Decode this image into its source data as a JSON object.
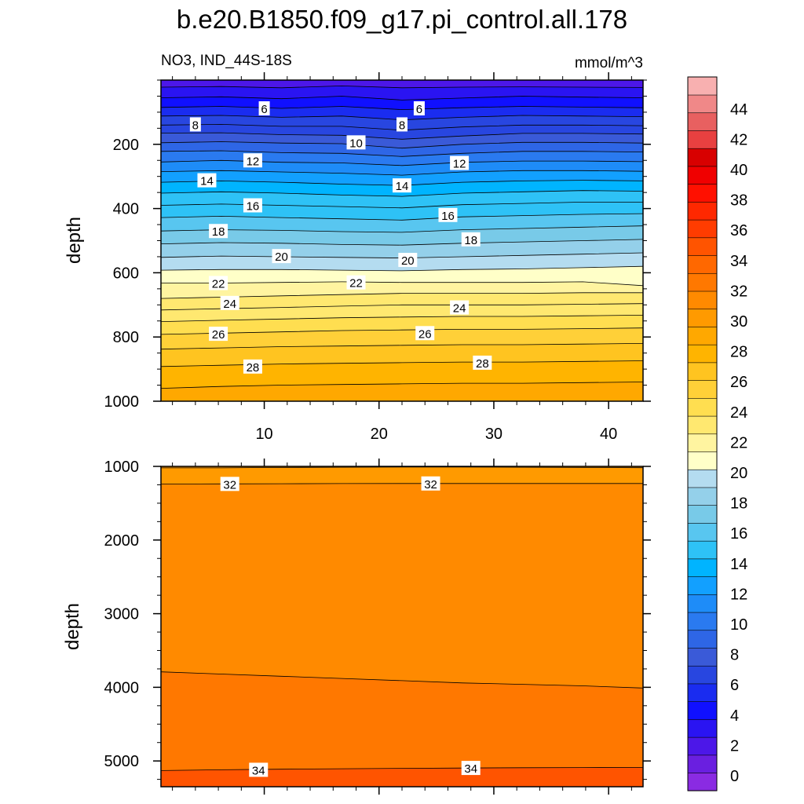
{
  "chart_data": {
    "type": "contour",
    "title": "b.e20.B1850.f09_g17.pi_control.all.178",
    "variable_label": "NO3, IND_44S-18S",
    "units": "mmol/m^3",
    "upper_panel": {
      "ylabel": "depth",
      "xlim": [
        1,
        43
      ],
      "ylim": [
        1000,
        0
      ],
      "x_ticks": [
        10,
        20,
        30,
        40
      ],
      "y_ticks": [
        200,
        400,
        600,
        800,
        1000
      ],
      "isolines": [
        {
          "level": 3.5,
          "depths": [
            22,
            20,
            24,
            18,
            24,
            22,
            21,
            22,
            23
          ]
        },
        {
          "level": 5,
          "depths": [
            55,
            52,
            58,
            50,
            62,
            56,
            50,
            53,
            55
          ]
        },
        {
          "level": 6,
          "depths": [
            85,
            82,
            88,
            82,
            92,
            86,
            82,
            84,
            86
          ]
        },
        {
          "level": 7,
          "depths": [
            112,
            110,
            116,
            112,
            124,
            116,
            110,
            112,
            114
          ]
        },
        {
          "level": 8,
          "depths": [
            140,
            138,
            144,
            144,
            156,
            146,
            140,
            140,
            142
          ]
        },
        {
          "level": 9,
          "depths": [
            165,
            164,
            170,
            172,
            184,
            174,
            166,
            166,
            168
          ]
        },
        {
          "level": 10,
          "depths": [
            195,
            192,
            196,
            198,
            212,
            200,
            194,
            194,
            196
          ]
        },
        {
          "level": 11,
          "depths": [
            222,
            220,
            226,
            228,
            238,
            228,
            222,
            222,
            224
          ]
        },
        {
          "level": 12,
          "depths": [
            255,
            250,
            256,
            258,
            266,
            256,
            252,
            252,
            254
          ]
        },
        {
          "level": 13,
          "depths": [
            285,
            282,
            286,
            290,
            296,
            286,
            282,
            282,
            284
          ]
        },
        {
          "level": 14,
          "depths": [
            318,
            314,
            318,
            324,
            328,
            318,
            314,
            312,
            314
          ]
        },
        {
          "level": 15,
          "depths": [
            352,
            348,
            352,
            358,
            362,
            352,
            348,
            344,
            346
          ]
        },
        {
          "level": 16,
          "depths": [
            390,
            386,
            390,
            394,
            398,
            388,
            384,
            380,
            380
          ]
        },
        {
          "level": 17,
          "depths": [
            428,
            424,
            428,
            432,
            436,
            426,
            422,
            418,
            416
          ]
        },
        {
          "level": 18,
          "depths": [
            470,
            466,
            468,
            472,
            474,
            466,
            462,
            458,
            454
          ]
        },
        {
          "level": 19,
          "depths": [
            510,
            506,
            508,
            512,
            514,
            508,
            504,
            500,
            496
          ]
        },
        {
          "level": 20,
          "depths": [
            552,
            548,
            550,
            552,
            554,
            550,
            546,
            542,
            538
          ]
        },
        {
          "level": 21,
          "depths": [
            592,
            590,
            590,
            592,
            594,
            590,
            588,
            584,
            580
          ]
        },
        {
          "level": 22,
          "depths": [
            632,
            632,
            630,
            628,
            630,
            630,
            630,
            628,
            640
          ]
        },
        {
          "level": 23,
          "depths": [
            680,
            676,
            672,
            668,
            664,
            664,
            664,
            662,
            662
          ]
        },
        {
          "level": 24,
          "depths": [
            716,
            712,
            708,
            704,
            700,
            700,
            700,
            698,
            696
          ]
        },
        {
          "level": 25,
          "depths": [
            752,
            748,
            744,
            740,
            738,
            736,
            736,
            734,
            732
          ]
        },
        {
          "level": 26,
          "depths": [
            792,
            788,
            784,
            780,
            778,
            776,
            776,
            774,
            772
          ]
        },
        {
          "level": 27,
          "depths": [
            838,
            834,
            830,
            828,
            826,
            824,
            824,
            822,
            820
          ]
        },
        {
          "level": 28,
          "depths": [
            892,
            888,
            884,
            882,
            880,
            878,
            878,
            876,
            874
          ]
        },
        {
          "level": 29,
          "depths": [
            960,
            954,
            950,
            948,
            946,
            944,
            944,
            942,
            940
          ]
        }
      ],
      "contour_labels": [
        {
          "text": "6",
          "x": 10,
          "y": 88
        },
        {
          "text": "6",
          "x": 23.5,
          "y": 88
        },
        {
          "text": "8",
          "x": 4,
          "y": 138
        },
        {
          "text": "8",
          "x": 22,
          "y": 138
        },
        {
          "text": "10",
          "x": 18,
          "y": 194
        },
        {
          "text": "12",
          "x": 9,
          "y": 250
        },
        {
          "text": "12",
          "x": 27,
          "y": 258
        },
        {
          "text": "14",
          "x": 5,
          "y": 312
        },
        {
          "text": "14",
          "x": 22,
          "y": 328
        },
        {
          "text": "16",
          "x": 9,
          "y": 390
        },
        {
          "text": "16",
          "x": 26,
          "y": 420
        },
        {
          "text": "18",
          "x": 6,
          "y": 470
        },
        {
          "text": "18",
          "x": 28,
          "y": 496
        },
        {
          "text": "20",
          "x": 11.5,
          "y": 548
        },
        {
          "text": "20",
          "x": 22.5,
          "y": 560
        },
        {
          "text": "22",
          "x": 6,
          "y": 632
        },
        {
          "text": "22",
          "x": 18,
          "y": 630
        },
        {
          "text": "24",
          "x": 7,
          "y": 694
        },
        {
          "text": "24",
          "x": 27,
          "y": 708
        },
        {
          "text": "26",
          "x": 6,
          "y": 790
        },
        {
          "text": "26",
          "x": 24,
          "y": 788
        },
        {
          "text": "28",
          "x": 9,
          "y": 892
        },
        {
          "text": "28",
          "x": 29,
          "y": 880
        }
      ]
    },
    "lower_panel": {
      "ylabel": "depth",
      "xlim": [
        1,
        43
      ],
      "ylim": [
        5350,
        1000
      ],
      "y_ticks": [
        1000,
        2000,
        3000,
        4000,
        5000
      ],
      "isolines": [
        {
          "level": 31,
          "depths": [
            1020,
            1020,
            1015,
            1012,
            1010,
            1010,
            1012,
            1015,
            1018
          ]
        },
        {
          "level": 32,
          "depths": [
            1240,
            1238,
            1236,
            1234,
            1232,
            1232,
            1232,
            1232,
            1232
          ]
        },
        {
          "level": 33,
          "depths": [
            3790,
            3820,
            3850,
            3880,
            3910,
            3940,
            3960,
            3980,
            4010
          ]
        },
        {
          "level": 34,
          "depths": [
            5130,
            5120,
            5112,
            5106,
            5100,
            5096,
            5092,
            5090,
            5088
          ]
        }
      ],
      "contour_labels": [
        {
          "text": "32",
          "x": 7,
          "y": 1238
        },
        {
          "text": "32",
          "x": 24.5,
          "y": 1232
        },
        {
          "text": "34",
          "x": 9.5,
          "y": 5120
        },
        {
          "text": "34",
          "x": 28,
          "y": 5095
        }
      ]
    },
    "colorbar": {
      "levels": [
        0,
        2,
        4,
        6,
        8,
        10,
        12,
        14,
        16,
        18,
        20,
        22,
        24,
        26,
        28,
        30,
        32,
        34,
        36,
        38,
        40,
        42,
        44
      ],
      "colors": [
        "#8a2be2",
        "#6a1fe0",
        "#4c17e8",
        "#2a14f2",
        "#1010ff",
        "#1a2cf0",
        "#2846e0",
        "#3a5ad8",
        "#2e66e6",
        "#2a7af0",
        "#1e8cf8",
        "#12a0ff",
        "#00b4ff",
        "#2ec2f6",
        "#58c6f0",
        "#78cae8",
        "#94d0ea",
        "#b4dcf0",
        "#ffffc8",
        "#fff4a0",
        "#ffe870",
        "#ffde50",
        "#ffd038",
        "#ffc420",
        "#ffb400",
        "#ffa800",
        "#ff9a00",
        "#ff8a00",
        "#ff7800",
        "#ff6800",
        "#ff5400",
        "#ff3c00",
        "#ff2800",
        "#ff1000",
        "#f00000",
        "#d80000",
        "#e84040",
        "#e86060",
        "#f08888",
        "#f8b0b0"
      ],
      "tick_labels": [
        "0",
        "2",
        "4",
        "6",
        "8",
        "10",
        "12",
        "14",
        "16",
        "18",
        "20",
        "22",
        "24",
        "26",
        "28",
        "30",
        "32",
        "34",
        "36",
        "38",
        "40",
        "42",
        "44"
      ]
    }
  }
}
